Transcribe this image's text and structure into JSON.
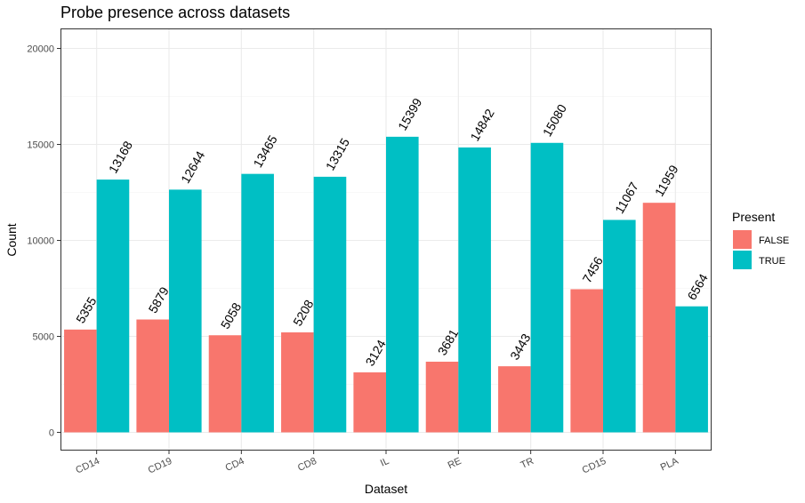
{
  "chart_data": {
    "type": "bar",
    "title": "Probe presence across datasets",
    "xlabel": "Dataset",
    "ylabel": "Count",
    "categories": [
      "CD14",
      "CD19",
      "CD4",
      "CD8",
      "IL",
      "RE",
      "TR",
      "CD15",
      "PLA"
    ],
    "series": [
      {
        "name": "FALSE",
        "color": "#F8766D",
        "values": [
          5355,
          5879,
          5058,
          5208,
          3124,
          3681,
          3443,
          7456,
          11959
        ]
      },
      {
        "name": "TRUE",
        "color": "#00BFC4",
        "values": [
          13168,
          12644,
          13465,
          13315,
          15399,
          14842,
          15080,
          11067,
          6564
        ]
      }
    ],
    "ylim": [
      0,
      20000
    ],
    "yticks": [
      0,
      5000,
      10000,
      15000,
      20000
    ],
    "grid": true,
    "legend": {
      "title": "Present",
      "position": "right"
    }
  }
}
